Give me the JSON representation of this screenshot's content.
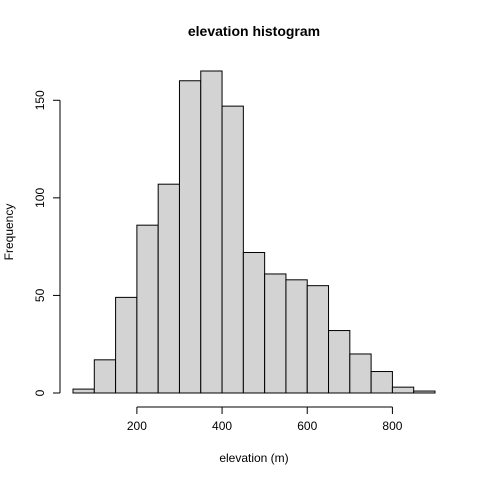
{
  "chart_data": {
    "type": "bar",
    "title": "elevation histogram",
    "xlabel": "elevation (m)",
    "ylabel": "Frequency",
    "bin_edges": [
      50,
      100,
      150,
      200,
      250,
      300,
      350,
      400,
      450,
      500,
      550,
      600,
      650,
      700,
      750,
      800,
      850,
      900
    ],
    "values": [
      2,
      17,
      49,
      86,
      107,
      160,
      165,
      147,
      72,
      61,
      58,
      55,
      32,
      20,
      11,
      3,
      1
    ],
    "xlim": [
      50,
      900
    ],
    "ylim": [
      0,
      165
    ],
    "x_ticks": [
      200,
      400,
      600,
      800
    ],
    "y_ticks": [
      0,
      50,
      100,
      150
    ],
    "grid": false,
    "bar_color": "#d3d3d3",
    "edge_color": "#000000"
  }
}
